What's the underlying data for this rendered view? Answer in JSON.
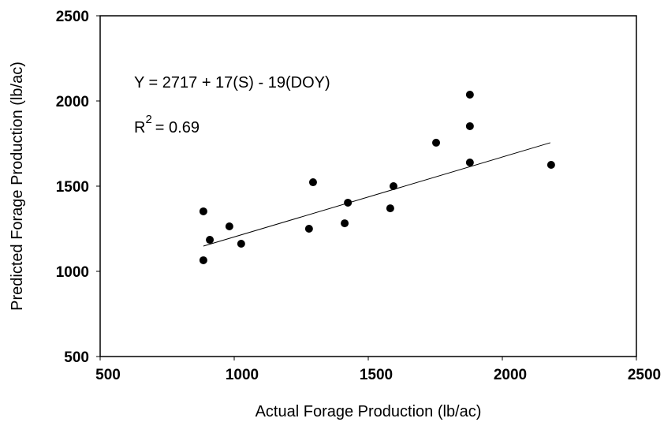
{
  "chart_data": {
    "type": "scatter",
    "xlabel": "Actual Forage Production (lb/ac)",
    "ylabel": "Predicted Forage Production (lb/ac)",
    "annotations": [
      "Y = 2717 + 17(S) - 19(DOY)",
      "R",
      "2",
      "= 0.69"
    ],
    "x": [
      885,
      885,
      909,
      982,
      1026,
      1279,
      1294,
      1412,
      1424,
      1582,
      1594,
      1753,
      1879,
      1879,
      1879,
      2182
    ],
    "series": [
      {
        "color": "#000000",
        "values": [
          1352,
          1065,
          1185,
          1264,
          1162,
          1250,
          1523,
          1282,
          1403,
          1370,
          1500,
          1755,
          2037,
          1852,
          1639,
          1625
        ]
      }
    ],
    "trendline": {
      "x": [
        885,
        2179
      ],
      "y": [
        1148,
        1755
      ],
      "color": "#000000"
    },
    "xlim": [
      500,
      2500
    ],
    "xticks": [
      500,
      1000,
      1500,
      2000,
      2500
    ],
    "ylim": [
      500,
      2500
    ],
    "yticks": [
      500,
      1000,
      1500,
      2000,
      2500
    ]
  }
}
